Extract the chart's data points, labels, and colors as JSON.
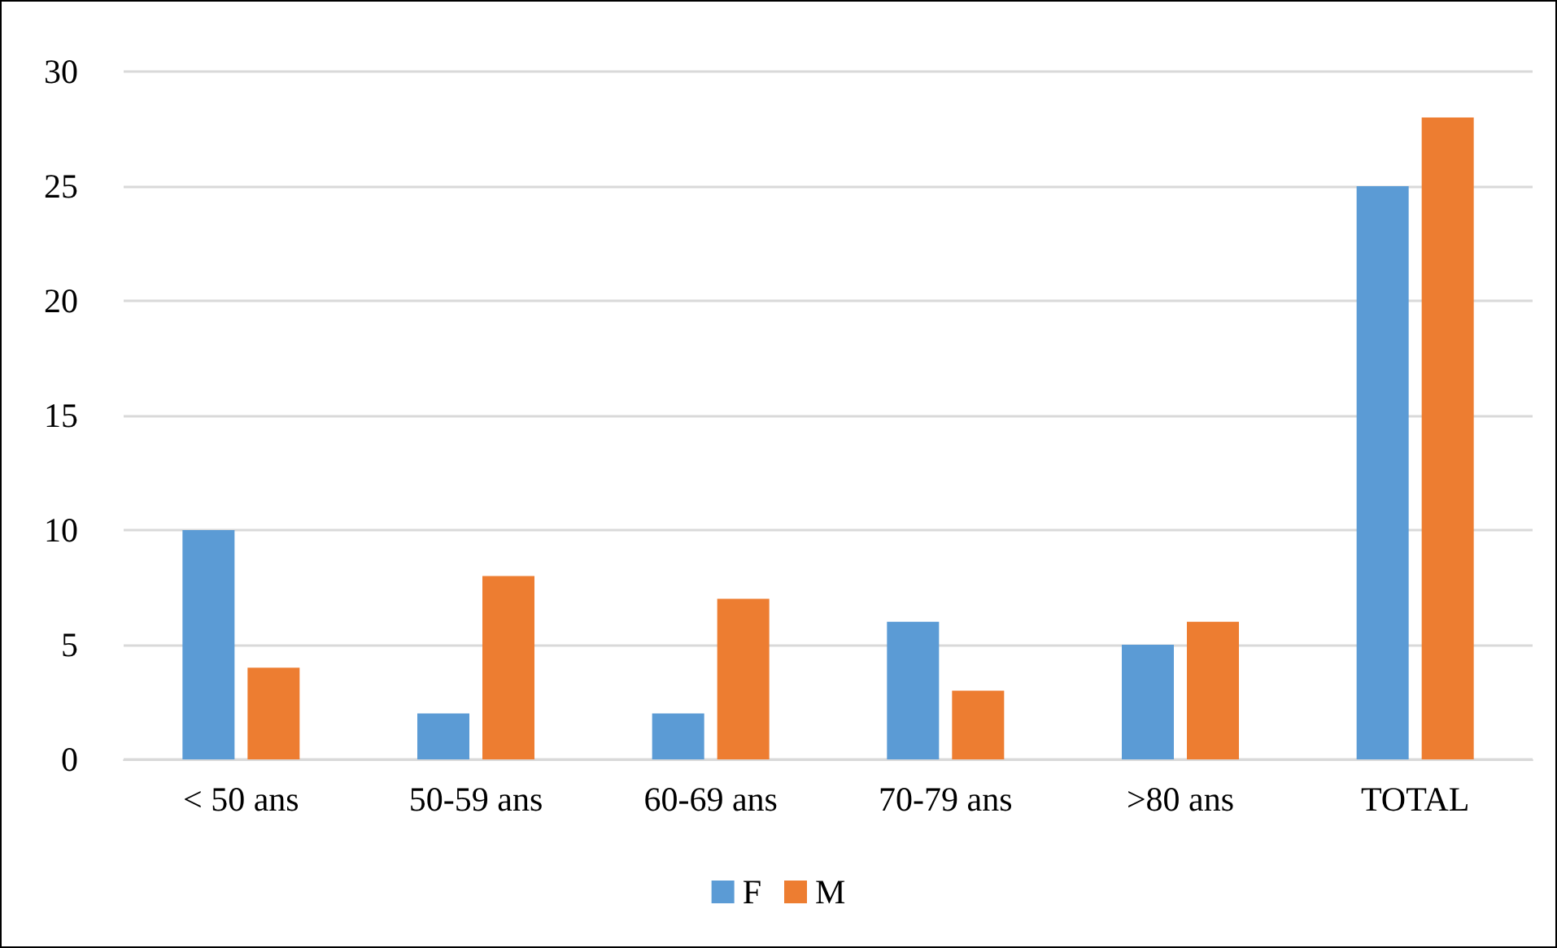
{
  "chart_data": {
    "type": "bar",
    "categories": [
      "< 50 ans",
      "50-59 ans",
      "60-69 ans",
      "70-79 ans",
      ">80 ans",
      "TOTAL"
    ],
    "series": [
      {
        "name": "F",
        "color": "#5b9bd5",
        "values": [
          10,
          2,
          2,
          6,
          5,
          25
        ]
      },
      {
        "name": "M",
        "color": "#ed7d31",
        "values": [
          4,
          8,
          7,
          3,
          6,
          28
        ]
      }
    ],
    "ylim": [
      0,
      30
    ],
    "yticks": [
      0,
      5,
      10,
      15,
      20,
      25,
      30
    ],
    "grid": "y",
    "legend": "bottom"
  }
}
